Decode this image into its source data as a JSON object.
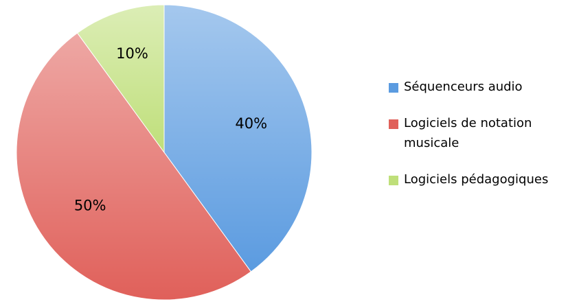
{
  "chart_data": {
    "type": "pie",
    "categories": [
      "Séquenceurs audio",
      "Logiciels de notation musicale",
      "Logiciels pédagogiques"
    ],
    "values": [
      40,
      50,
      10
    ],
    "value_labels": [
      "40%",
      "50%",
      "10%"
    ],
    "colors": [
      "#5b9be0",
      "#e0605a",
      "#bfdf7a"
    ],
    "legend": "right"
  }
}
